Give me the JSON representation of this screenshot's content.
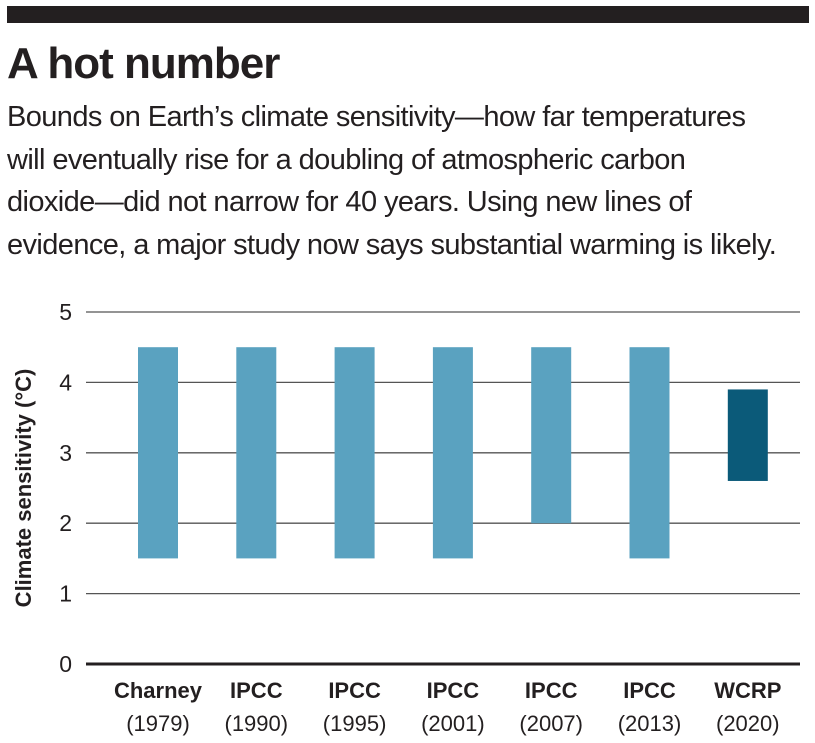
{
  "header": {
    "title": "A hot number",
    "subtitle_lines": [
      "Bounds on Earth’s climate sensitivity—how far temperatures",
      "will eventually rise for a doubling of atmospheric carbon",
      "dioxide—did not narrow for 40 years. Using new lines of",
      "evidence, a major study now says substantial warming is likely."
    ]
  },
  "colors": {
    "header_rule": "#231f20",
    "bar_light": "#5aa2c0",
    "bar_dark": "#0b5a79",
    "gridline": "#555555",
    "axis": "#231f20",
    "text": "#231f20"
  },
  "chart_data": {
    "type": "bar",
    "subtype": "floating-range",
    "ylabel": "Climate sensitivity (°C)",
    "ylim": [
      0,
      5
    ],
    "yticks": [
      0,
      1,
      2,
      3,
      4,
      5
    ],
    "grid": true,
    "categories": [
      {
        "name": "Charney",
        "year": "(1979)"
      },
      {
        "name": "IPCC",
        "year": "(1990)"
      },
      {
        "name": "IPCC",
        "year": "(1995)"
      },
      {
        "name": "IPCC",
        "year": "(2001)"
      },
      {
        "name": "IPCC",
        "year": "(2007)"
      },
      {
        "name": "IPCC",
        "year": "(2013)"
      },
      {
        "name": "WCRP",
        "year": "(2020)"
      }
    ],
    "ranges": [
      {
        "low": 1.5,
        "high": 4.5,
        "color": "bar_light"
      },
      {
        "low": 1.5,
        "high": 4.5,
        "color": "bar_light"
      },
      {
        "low": 1.5,
        "high": 4.5,
        "color": "bar_light"
      },
      {
        "low": 1.5,
        "high": 4.5,
        "color": "bar_light"
      },
      {
        "low": 2.0,
        "high": 4.5,
        "color": "bar_light"
      },
      {
        "low": 1.5,
        "high": 4.5,
        "color": "bar_light"
      },
      {
        "low": 2.6,
        "high": 3.9,
        "color": "bar_dark"
      }
    ]
  }
}
